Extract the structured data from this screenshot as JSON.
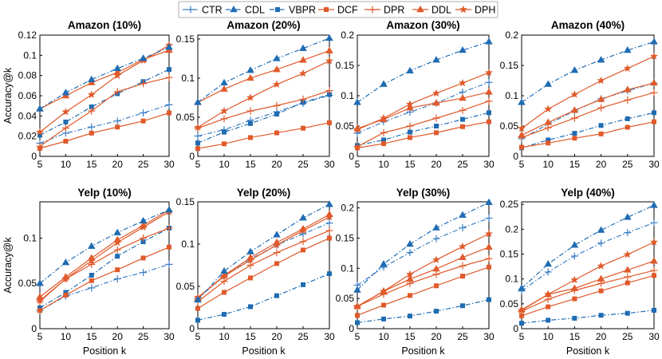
{
  "chart_data": {
    "type": "line",
    "ylabel": "Accuracy@k",
    "xlabel": "Position k",
    "x": [
      5,
      10,
      15,
      20,
      25,
      30
    ],
    "legend": {
      "placement": "top-center",
      "entries": [
        {
          "name": "CTR",
          "color": "#3c7fc4",
          "dash": "dashdot",
          "marker": "plus"
        },
        {
          "name": "CDL",
          "color": "#1f6cb3",
          "dash": "dashdot",
          "marker": "triangle"
        },
        {
          "name": "VBPR",
          "color": "#1f6cb3",
          "dash": "dashdot",
          "marker": "square"
        },
        {
          "name": "DCF",
          "color": "#e05a2b",
          "dash": "solid",
          "marker": "square"
        },
        {
          "name": "DPR",
          "color": "#e05a2b",
          "dash": "solid",
          "marker": "plus"
        },
        {
          "name": "DDL",
          "color": "#e05a2b",
          "dash": "solid",
          "marker": "triangle"
        },
        {
          "name": "DPH",
          "color": "#e05a2b",
          "dash": "solid",
          "marker": "star"
        }
      ]
    },
    "panels": [
      {
        "title": "Amazon (10%)",
        "ylim": [
          0,
          0.12
        ],
        "yticks": [
          0,
          0.02,
          0.04,
          0.06,
          0.08,
          0.1,
          0.12
        ],
        "ytick_labels": [
          "0",
          "0.02",
          "0.04",
          "0.06",
          "0.08",
          "0.1",
          "0.12"
        ],
        "series": {
          "CTR": [
            0.013,
            0.023,
            0.029,
            0.035,
            0.043,
            0.051
          ],
          "CDL": [
            0.047,
            0.063,
            0.076,
            0.087,
            0.097,
            0.108
          ],
          "VBPR": [
            0.021,
            0.034,
            0.049,
            0.062,
            0.074,
            0.086
          ],
          "DCF": [
            0.008,
            0.015,
            0.023,
            0.029,
            0.035,
            0.043
          ],
          "DPR": [
            0.01,
            0.028,
            0.045,
            0.064,
            0.072,
            0.078
          ],
          "DDL": [
            0.047,
            0.06,
            0.073,
            0.083,
            0.096,
            0.105
          ],
          "DPH": [
            0.024,
            0.044,
            0.061,
            0.08,
            0.095,
            0.11
          ]
        }
      },
      {
        "title": "Amazon (20%)",
        "ylim": [
          0,
          0.155
        ],
        "yticks": [
          0,
          0.05,
          0.1,
          0.15
        ],
        "ytick_labels": [
          "0",
          "0.05",
          "0.1",
          "0.15"
        ],
        "series": {
          "CTR": [
            0.026,
            0.034,
            0.046,
            0.057,
            0.068,
            0.078
          ],
          "CDL": [
            0.069,
            0.094,
            0.11,
            0.125,
            0.138,
            0.151
          ],
          "VBPR": [
            0.017,
            0.031,
            0.042,
            0.054,
            0.069,
            0.079
          ],
          "DCF": [
            0.01,
            0.016,
            0.024,
            0.03,
            0.036,
            0.043
          ],
          "DPR": [
            0.036,
            0.048,
            0.058,
            0.065,
            0.073,
            0.084
          ],
          "DDL": [
            0.069,
            0.086,
            0.1,
            0.111,
            0.123,
            0.135
          ],
          "DPH": [
            0.037,
            0.058,
            0.075,
            0.092,
            0.106,
            0.122
          ]
        }
      },
      {
        "title": "Amazon (30%)",
        "ylim": [
          0,
          0.2
        ],
        "yticks": [
          0,
          0.05,
          0.1,
          0.15,
          0.2
        ],
        "ytick_labels": [
          "0",
          "0.05",
          "0.1",
          "0.15",
          "0.2"
        ],
        "series": {
          "CTR": [
            0.038,
            0.057,
            0.073,
            0.088,
            0.106,
            0.122
          ],
          "CDL": [
            0.089,
            0.119,
            0.141,
            0.159,
            0.175,
            0.189
          ],
          "VBPR": [
            0.018,
            0.027,
            0.04,
            0.05,
            0.061,
            0.072
          ],
          "DCF": [
            0.014,
            0.021,
            0.031,
            0.039,
            0.049,
            0.057
          ],
          "DPR": [
            0.016,
            0.039,
            0.05,
            0.063,
            0.076,
            0.091
          ],
          "DDL": [
            0.046,
            0.061,
            0.08,
            0.088,
            0.096,
            0.106
          ],
          "DPH": [
            0.044,
            0.063,
            0.086,
            0.104,
            0.121,
            0.138
          ]
        }
      },
      {
        "title": "Amazon (40%)",
        "ylim": [
          0,
          0.2
        ],
        "yticks": [
          0,
          0.05,
          0.1,
          0.15,
          0.2
        ],
        "ytick_labels": [
          "0",
          "0.05",
          "0.1",
          "0.15",
          "0.2"
        ],
        "series": {
          "CTR": [
            0.029,
            0.053,
            0.075,
            0.095,
            0.108,
            0.121
          ],
          "CDL": [
            0.089,
            0.119,
            0.142,
            0.159,
            0.175,
            0.189
          ],
          "VBPR": [
            0.014,
            0.027,
            0.038,
            0.051,
            0.062,
            0.072
          ],
          "DCF": [
            0.015,
            0.022,
            0.03,
            0.037,
            0.048,
            0.057
          ],
          "DPR": [
            0.031,
            0.047,
            0.063,
            0.08,
            0.093,
            0.105
          ],
          "DDL": [
            0.035,
            0.056,
            0.076,
            0.094,
            0.11,
            0.121
          ],
          "DPH": [
            0.046,
            0.078,
            0.102,
            0.125,
            0.145,
            0.165
          ]
        }
      },
      {
        "title": "Yelp (10%)",
        "ylim": [
          0,
          0.14
        ],
        "yticks": [
          0,
          0.05,
          0.1
        ],
        "ytick_labels": [
          "0",
          "0.05",
          "0.1"
        ],
        "series": {
          "CTR": [
            0.02,
            0.036,
            0.045,
            0.055,
            0.062,
            0.071
          ],
          "CDL": [
            0.05,
            0.073,
            0.091,
            0.106,
            0.119,
            0.131
          ],
          "VBPR": [
            0.023,
            0.04,
            0.059,
            0.08,
            0.096,
            0.111
          ],
          "DCF": [
            0.02,
            0.037,
            0.053,
            0.065,
            0.078,
            0.09
          ],
          "DPR": [
            0.03,
            0.055,
            0.071,
            0.087,
            0.1,
            0.111
          ],
          "DDL": [
            0.035,
            0.057,
            0.078,
            0.098,
            0.114,
            0.131
          ],
          "DPH": [
            0.031,
            0.055,
            0.075,
            0.095,
            0.112,
            0.129
          ]
        }
      },
      {
        "title": "Yelp (20%)",
        "ylim": [
          0,
          0.15
        ],
        "yticks": [
          0,
          0.05,
          0.1,
          0.15
        ],
        "ytick_labels": [
          "0",
          "0.05",
          "0.1",
          "0.15"
        ],
        "series": {
          "CTR": [
            0.036,
            0.062,
            0.082,
            0.099,
            0.112,
            0.125
          ],
          "CDL": [
            0.034,
            0.068,
            0.091,
            0.111,
            0.131,
            0.147
          ],
          "VBPR": [
            0.01,
            0.017,
            0.026,
            0.039,
            0.052,
            0.065
          ],
          "DCF": [
            0.024,
            0.043,
            0.06,
            0.077,
            0.093,
            0.107
          ],
          "DPR": [
            0.032,
            0.056,
            0.075,
            0.09,
            0.103,
            0.116
          ],
          "DDL": [
            0.036,
            0.063,
            0.084,
            0.102,
            0.118,
            0.135
          ],
          "DPH": [
            0.037,
            0.062,
            0.081,
            0.099,
            0.116,
            0.132
          ]
        }
      },
      {
        "title": "Yelp (30%)",
        "ylim": [
          0,
          0.21
        ],
        "yticks": [
          0,
          0.05,
          0.1,
          0.15,
          0.2
        ],
        "ytick_labels": [
          "0",
          "0.05",
          "0.1",
          "0.15",
          "0.2"
        ],
        "series": {
          "CTR": [
            0.072,
            0.102,
            0.126,
            0.149,
            0.167,
            0.183
          ],
          "CDL": [
            0.064,
            0.107,
            0.14,
            0.167,
            0.188,
            0.209
          ],
          "VBPR": [
            0.01,
            0.016,
            0.021,
            0.029,
            0.038,
            0.048
          ],
          "DCF": [
            0.022,
            0.039,
            0.055,
            0.071,
            0.087,
            0.102
          ],
          "DPR": [
            0.037,
            0.057,
            0.075,
            0.09,
            0.104,
            0.116
          ],
          "DDL": [
            0.037,
            0.062,
            0.082,
            0.099,
            0.118,
            0.135
          ],
          "DPH": [
            0.037,
            0.062,
            0.09,
            0.114,
            0.136,
            0.157
          ]
        }
      },
      {
        "title": "Yelp (40%)",
        "ylim": [
          0,
          0.255
        ],
        "yticks": [
          0,
          0.05,
          0.1,
          0.15,
          0.2,
          0.25
        ],
        "ytick_labels": [
          "0",
          "0.05",
          "0.1",
          "0.15",
          "0.2",
          "0.25"
        ],
        "series": {
          "CTR": [
            0.076,
            0.114,
            0.146,
            0.172,
            0.193,
            0.213
          ],
          "CDL": [
            0.081,
            0.13,
            0.168,
            0.198,
            0.224,
            0.248
          ],
          "VBPR": [
            0.011,
            0.017,
            0.021,
            0.027,
            0.031,
            0.037
          ],
          "DCF": [
            0.026,
            0.044,
            0.06,
            0.076,
            0.092,
            0.107
          ],
          "DPR": [
            0.035,
            0.059,
            0.077,
            0.091,
            0.104,
            0.117
          ],
          "DDL": [
            0.038,
            0.069,
            0.081,
            0.1,
            0.118,
            0.136
          ],
          "DPH": [
            0.037,
            0.069,
            0.098,
            0.126,
            0.149,
            0.174
          ]
        }
      }
    ]
  }
}
